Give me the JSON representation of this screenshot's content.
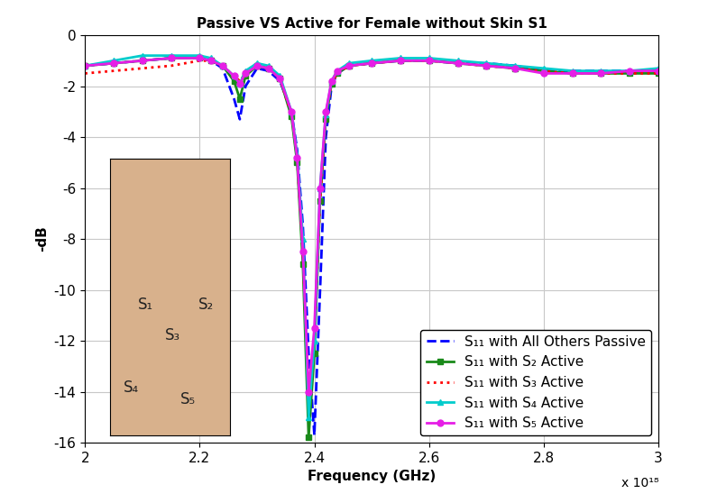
{
  "chart_data": {
    "type": "line",
    "title": "Passive VS Active for Female without Skin S1",
    "x_label": "Frequency (GHz)",
    "y_label": "-dB",
    "x_multiplier": "x 10¹⁸",
    "inset_labels": [
      "S₁",
      "S₂",
      "S₃",
      "S₄",
      "S₅"
    ],
    "x": [
      2.0,
      2.05,
      2.1,
      2.15,
      2.2,
      2.22,
      2.24,
      2.26,
      2.27,
      2.28,
      2.3,
      2.32,
      2.34,
      2.36,
      2.37,
      2.38,
      2.39,
      2.4,
      2.41,
      2.42,
      2.43,
      2.44,
      2.46,
      2.5,
      2.55,
      2.6,
      2.65,
      2.7,
      2.75,
      2.8,
      2.85,
      2.9,
      2.95,
      3.0
    ],
    "series": [
      {
        "name": "S₁₁ with All Others Passive",
        "color": "#0000ff",
        "line_style": "dashed",
        "marker": "none",
        "values": [
          -1.2,
          -1.1,
          -1.0,
          -0.9,
          -0.9,
          -1.0,
          -1.3,
          -2.5,
          -3.3,
          -2.0,
          -1.3,
          -1.4,
          -1.8,
          -3.0,
          -4.5,
          -7.5,
          -12.5,
          -15.7,
          -10.0,
          -4.0,
          -2.0,
          -1.5,
          -1.2,
          -1.1,
          -1.0,
          -1.0,
          -1.1,
          -1.1,
          -1.2,
          -1.4,
          -1.4,
          -1.4,
          -1.4,
          -1.4
        ]
      },
      {
        "name": "S₁₁ with S₂ Active",
        "color": "#1a8a1a",
        "line_style": "solid",
        "marker": "square",
        "values": [
          -1.2,
          -1.1,
          -1.0,
          -0.9,
          -0.9,
          -1.0,
          -1.2,
          -1.8,
          -2.5,
          -1.6,
          -1.2,
          -1.3,
          -1.7,
          -3.2,
          -5.0,
          -9.0,
          -15.8,
          -12.5,
          -6.5,
          -3.3,
          -1.9,
          -1.5,
          -1.2,
          -1.1,
          -1.0,
          -1.0,
          -1.1,
          -1.2,
          -1.3,
          -1.4,
          -1.5,
          -1.5,
          -1.5,
          -1.5
        ]
      },
      {
        "name": "S₁₁ with S₃ Active",
        "color": "#ff0000",
        "line_style": "dotted",
        "marker": "none",
        "values": [
          -1.5,
          -1.4,
          -1.3,
          -1.2,
          -1.0,
          -1.0,
          -1.2,
          -1.6,
          -1.8,
          -1.5,
          -1.2,
          -1.3,
          -1.7,
          -3.1,
          -4.8,
          -8.5,
          -14.5,
          -12.0,
          -6.5,
          -3.2,
          -1.9,
          -1.5,
          -1.2,
          -1.1,
          -1.0,
          -1.0,
          -1.1,
          -1.2,
          -1.3,
          -1.4,
          -1.5,
          -1.5,
          -1.5,
          -1.5
        ]
      },
      {
        "name": "S₁₁ with S₄ Active",
        "color": "#00cccc",
        "line_style": "solid",
        "marker": "triangle",
        "values": [
          -1.2,
          -1.0,
          -0.8,
          -0.8,
          -0.8,
          -0.9,
          -1.2,
          -1.6,
          -1.9,
          -1.4,
          -1.1,
          -1.2,
          -1.6,
          -3.0,
          -4.7,
          -8.0,
          -15.0,
          -12.0,
          -6.0,
          -3.1,
          -1.8,
          -1.4,
          -1.1,
          -1.0,
          -0.9,
          -0.9,
          -1.0,
          -1.1,
          -1.2,
          -1.3,
          -1.4,
          -1.4,
          -1.4,
          -1.3
        ]
      },
      {
        "name": "S₁₁ with S₅ Active",
        "color": "#e61ee6",
        "line_style": "solid",
        "marker": "circle",
        "values": [
          -1.2,
          -1.1,
          -1.0,
          -0.9,
          -0.9,
          -1.0,
          -1.2,
          -1.6,
          -1.9,
          -1.5,
          -1.2,
          -1.3,
          -1.7,
          -3.0,
          -4.8,
          -8.5,
          -14.0,
          -11.5,
          -6.0,
          -3.0,
          -1.8,
          -1.4,
          -1.2,
          -1.1,
          -1.0,
          -1.0,
          -1.1,
          -1.2,
          -1.3,
          -1.5,
          -1.5,
          -1.5,
          -1.4,
          -1.4
        ]
      }
    ],
    "xlim": [
      2,
      3
    ],
    "xticks": [
      2,
      2.2,
      2.4,
      2.6,
      2.8,
      3
    ],
    "ylim": [
      -16,
      0
    ],
    "yticks": [
      -16,
      -14,
      -12,
      -10,
      -8,
      -6,
      -4,
      -2,
      0
    ],
    "grid": true,
    "legend": "lower right"
  }
}
